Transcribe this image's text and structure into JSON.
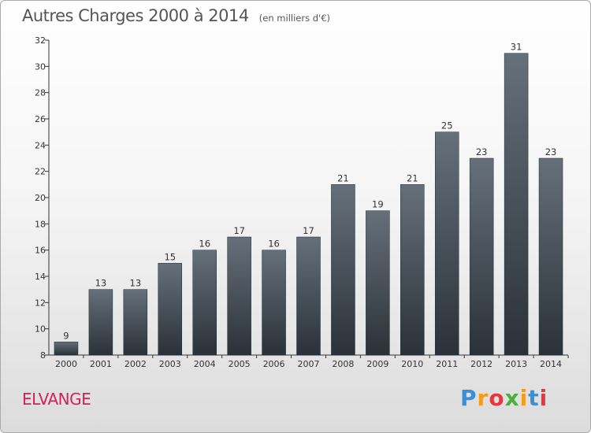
{
  "title": "Autres Charges 2000 à 2014",
  "subtitle": "(en milliers d'€)",
  "commune": "ELVANGE",
  "logo": {
    "letters": [
      "P",
      "r",
      "o",
      "x",
      "i",
      "t",
      "i"
    ],
    "colors": [
      "#3b8fd6",
      "#f29b1d",
      "#e8363c",
      "#4cae3f",
      "#f29b1d",
      "#3b8fd6",
      "#e8363c"
    ]
  },
  "colors": {
    "bar_top": "#66707a",
    "bar_bottom": "#2a3138",
    "title": "#555555",
    "commune": "#d1225a"
  },
  "chart_data": {
    "type": "bar",
    "title": "Autres Charges 2000 à 2014",
    "categories": [
      "2000",
      "2001",
      "2002",
      "2003",
      "2004",
      "2005",
      "2006",
      "2007",
      "2008",
      "2009",
      "2010",
      "2011",
      "2012",
      "2013",
      "2014"
    ],
    "values": [
      9,
      13,
      13,
      15,
      16,
      17,
      16,
      17,
      21,
      19,
      21,
      25,
      23,
      31,
      23
    ],
    "ylim": [
      8,
      32
    ],
    "yticks": [
      8,
      10,
      12,
      14,
      16,
      18,
      20,
      22,
      24,
      26,
      28,
      30,
      32
    ],
    "grid": false,
    "data_labels": true
  }
}
